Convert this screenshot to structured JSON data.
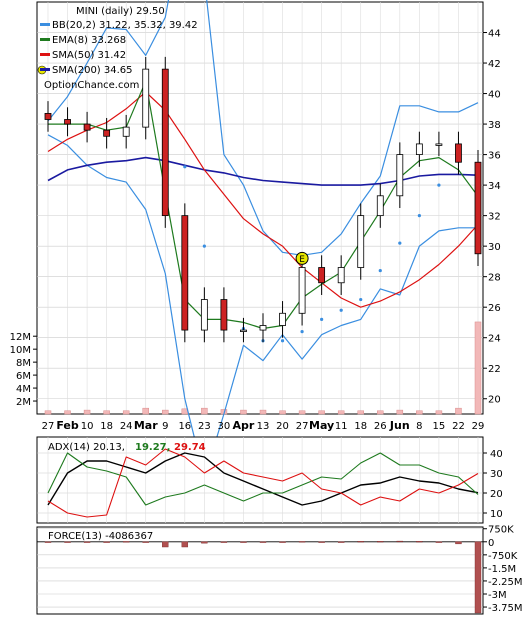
{
  "chart_data": [
    {
      "type": "candlestick",
      "title": "MINI (daily) 29.50",
      "watermark": "OptionChance.com",
      "legend": [
        {
          "label": "BB(20,2) 31.22, 35.32, 39.42",
          "color": "#3a8ee0"
        },
        {
          "label": "EMA(8) 33.268",
          "color": "#1e7a1e"
        },
        {
          "label": "SMA(50) 31.42",
          "color": "#dd1111"
        },
        {
          "label": "SMA(200) 34.65",
          "color": "#1a1aa0"
        }
      ],
      "legend_placement": "top-left",
      "x_tick_labels": [
        "27",
        "Feb",
        "10",
        "18",
        "24",
        "Mar",
        "9",
        "16",
        "23",
        "30",
        "Apr",
        "13",
        "20",
        "27",
        "May",
        "11",
        "18",
        "26",
        "Jun",
        "8",
        "15",
        "22",
        "29"
      ],
      "y_ticks": [
        20,
        22,
        24,
        26,
        28,
        30,
        32,
        34,
        36,
        38,
        40,
        42,
        44
      ],
      "ylim": [
        19,
        46
      ],
      "grid": true,
      "dates": [
        "Jan 27",
        "Feb 2",
        "Feb 10",
        "Feb 18",
        "Feb 24",
        "Mar 2",
        "Mar 9",
        "Mar 16",
        "Mar 23",
        "Mar 30",
        "Apr 6",
        "Apr 13",
        "Apr 20",
        "Apr 27",
        "May 4",
        "May 11",
        "May 18",
        "May 26",
        "Jun 1",
        "Jun 8",
        "Jun 15",
        "Jun 22",
        "Jun 29"
      ],
      "close": [
        38.3,
        38.0,
        37.6,
        37.2,
        37.8,
        41.6,
        32.0,
        24.5,
        26.5,
        24.5,
        24.5,
        24.8,
        25.6,
        28.6,
        27.6,
        28.6,
        32.0,
        33.3,
        36.0,
        36.7,
        36.7,
        35.5,
        29.5
      ],
      "bb_upper": [
        38.2,
        39.8,
        42.0,
        44.3,
        44.2,
        42.5,
        45.0,
        52.0,
        47.5,
        36.0,
        34.0,
        31.0,
        29.6,
        29.4,
        29.6,
        30.8,
        32.8,
        34.6,
        39.2,
        39.2,
        38.8,
        38.8,
        39.4
      ],
      "bb_lower": [
        37.3,
        36.6,
        35.3,
        34.5,
        34.2,
        32.4,
        28.2,
        20.0,
        14.8,
        19.0,
        23.5,
        22.5,
        24.2,
        22.6,
        24.2,
        24.8,
        25.2,
        27.2,
        26.8,
        30.0,
        31.0,
        31.2,
        31.2
      ],
      "ema8": [
        38.0,
        38.0,
        38.0,
        37.6,
        37.8,
        40.8,
        33.5,
        26.5,
        25.2,
        25.2,
        25.0,
        24.6,
        24.8,
        26.6,
        27.5,
        28.3,
        30.3,
        32.3,
        34.5,
        35.6,
        35.8,
        35.0,
        33.27
      ],
      "sma50": [
        36.2,
        37.0,
        37.6,
        38.1,
        39.0,
        40.1,
        38.9,
        37.0,
        35.0,
        33.4,
        31.8,
        30.8,
        30.0,
        28.6,
        27.6,
        26.6,
        26.0,
        26.4,
        27.0,
        27.8,
        28.8,
        30.0,
        31.42
      ],
      "sma200": [
        34.3,
        35.0,
        35.3,
        35.5,
        35.6,
        35.8,
        35.6,
        35.3,
        35.0,
        34.8,
        34.5,
        34.3,
        34.2,
        34.1,
        34.0,
        34.0,
        34.0,
        34.1,
        34.3,
        34.6,
        34.7,
        34.7,
        34.65
      ],
      "sar": [
        null,
        null,
        null,
        null,
        null,
        41.0,
        38.8,
        35.2,
        30.0,
        26.2,
        24.6,
        23.8,
        23.8,
        24.4,
        25.2,
        25.8,
        26.5,
        28.4,
        30.2,
        32.0,
        34.0,
        36.2,
        null
      ],
      "event_marker": {
        "label": "E",
        "date": "Apr 27",
        "value": 29.2
      },
      "volume_tick_labels": [
        "2M",
        "4M",
        "6M",
        "8M",
        "10M",
        "12M"
      ],
      "volume_unit": "M",
      "volume": [
        0.5,
        0.5,
        0.6,
        0.5,
        0.5,
        0.9,
        0.6,
        0.8,
        0.9,
        0.7,
        0.6,
        0.6,
        0.5,
        0.5,
        0.5,
        0.5,
        0.5,
        0.5,
        0.6,
        0.5,
        0.5,
        0.9,
        14.2
      ]
    },
    {
      "type": "line",
      "title": "ADX(14) 20.13,",
      "legend": [
        {
          "label": "19.27,",
          "color": "#1e7a1e"
        },
        {
          "label": "29.74",
          "color": "#dd1111"
        }
      ],
      "y_ticks": [
        10,
        20,
        30,
        40
      ],
      "ylim": [
        5,
        48
      ],
      "grid": true,
      "series": [
        {
          "name": "ADX(14) 20.13",
          "color": "#000000",
          "values": [
            14,
            30,
            36,
            36,
            33,
            30,
            36,
            40,
            38,
            30,
            26,
            22,
            18,
            14,
            16,
            20,
            24,
            25,
            28,
            26,
            25,
            22,
            20.13
          ]
        },
        {
          "name": "19.27",
          "color": "#1e7a1e",
          "values": [
            20,
            40,
            33,
            31,
            28,
            14,
            18,
            20,
            24,
            20,
            16,
            20,
            20,
            24,
            28,
            27,
            35,
            40,
            34,
            34,
            30,
            28,
            19.27
          ]
        },
        {
          "name": "29.74",
          "color": "#dd1111",
          "values": [
            16,
            10,
            8,
            9,
            38,
            34,
            42,
            38,
            30,
            36,
            30,
            28,
            26,
            30,
            22,
            20,
            14,
            18,
            16,
            22,
            20,
            24,
            29.74
          ]
        }
      ]
    },
    {
      "type": "bar",
      "title": "FORCE(13) -4086367",
      "y_tick_labels": [
        "750K",
        "0",
        "-750K",
        "-1.5M",
        "-2.25M",
        "-3M",
        "-3.75M"
      ],
      "y_ticks": [
        0.75,
        0,
        -0.75,
        -1.5,
        -2.25,
        -3.0,
        -3.75
      ],
      "ylim": [
        -4.15,
        0.85
      ],
      "unit": "M",
      "values": [
        0.0,
        0.0,
        0.0,
        0.0,
        0.02,
        -0.04,
        -0.3,
        -0.3,
        -0.08,
        -0.02,
        0.0,
        -0.02,
        -0.03,
        0.02,
        0.0,
        0.0,
        0.03,
        0.03,
        0.04,
        0.03,
        0.0,
        -0.12,
        -4.09
      ]
    }
  ]
}
